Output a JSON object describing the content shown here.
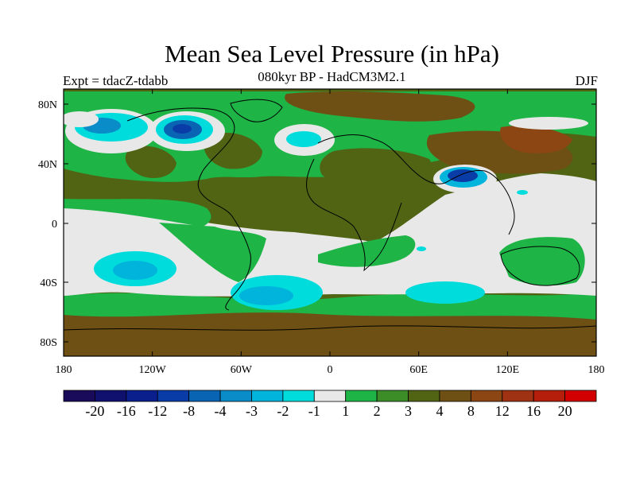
{
  "title": "Mean Sea Level Pressure (in hPa)",
  "subtitle": "080kyr BP - HadCM3M2.1",
  "left_label": "Expt = tdacZ-tdabb",
  "right_label": "DJF",
  "x_ticks": [
    "180",
    "120W",
    "60W",
    "0",
    "60E",
    "120E",
    "180"
  ],
  "y_ticks": [
    "80N",
    "40N",
    "0",
    "40S",
    "80S"
  ],
  "colorbar": {
    "labels": [
      "-20",
      "-16",
      "-12",
      "-8",
      "-4",
      "-3",
      "-2",
      "-1",
      "1",
      "2",
      "3",
      "4",
      "8",
      "12",
      "16",
      "20"
    ],
    "colors": [
      "#1a0a5a",
      "#10106e",
      "#0a1e8c",
      "#0a3ca8",
      "#0a64b4",
      "#0a8cc8",
      "#00b4dc",
      "#00dcdc",
      "#e8e8e8",
      "#1eb446",
      "#3c8c28",
      "#506414",
      "#6e5014",
      "#8c4614",
      "#a03214",
      "#b41e0a",
      "#d20000"
    ]
  },
  "colors": {
    "ocean_default": "#e8e8e8",
    "land_default": "#506414"
  }
}
